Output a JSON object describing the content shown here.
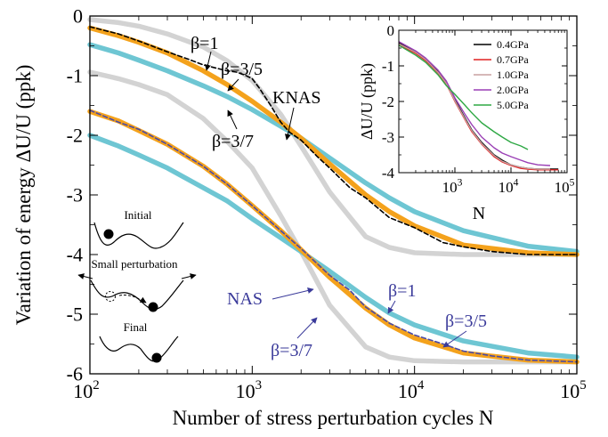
{
  "chart_data": [
    {
      "type": "line",
      "xlabel": "Number of stress perturbation cycles N",
      "ylabel": "Variation of energy ΔU/U (ppk)",
      "xscale": "log",
      "xlim": [
        100,
        100000
      ],
      "ylim": [
        -6,
        0
      ],
      "x_ticks": [
        {
          "value": 100,
          "base": "10",
          "exp": "2"
        },
        {
          "value": 1000,
          "base": "10",
          "exp": "3"
        },
        {
          "value": 10000,
          "base": "10",
          "exp": "4"
        },
        {
          "value": 100000,
          "base": "10",
          "exp": "5"
        }
      ],
      "y_ticks": [
        "0",
        "-1",
        "-2",
        "-3",
        "-4",
        "-5",
        "-6"
      ],
      "grid": false,
      "legend": "none",
      "colors": {
        "beta_1": "#d3d3d3",
        "beta_3_5": "#f4a21c",
        "beta_3_7": "#6ec6d3",
        "knas_data": "#000000",
        "nas_data": "#4a4aa8",
        "knas_label": "#000000",
        "nas_label": "#3a3a9a"
      },
      "series": [
        {
          "group": "KNAS",
          "kind": "fit_beta_1",
          "x": [
            100,
            150,
            200,
            300,
            500,
            700,
            1000,
            1500,
            2000,
            3000,
            5000,
            7000,
            10000,
            20000,
            50000,
            100000
          ],
          "y": [
            -0.06,
            -0.11,
            -0.17,
            -0.3,
            -0.52,
            -0.75,
            -1.08,
            -1.65,
            -2.18,
            -2.95,
            -3.7,
            -3.88,
            -3.97,
            -4.0,
            -4.0,
            -4.0
          ]
        },
        {
          "group": "KNAS",
          "kind": "fit_beta_3_5",
          "x": [
            100,
            150,
            200,
            300,
            500,
            700,
            1000,
            1500,
            2000,
            3000,
            5000,
            7000,
            10000,
            20000,
            50000,
            100000
          ],
          "y": [
            -0.2,
            -0.33,
            -0.44,
            -0.62,
            -0.92,
            -1.15,
            -1.43,
            -1.78,
            -2.05,
            -2.48,
            -3.0,
            -3.28,
            -3.52,
            -3.84,
            -3.97,
            -4.0
          ]
        },
        {
          "group": "KNAS",
          "kind": "fit_beta_3_7",
          "x": [
            100,
            150,
            200,
            300,
            500,
            700,
            1000,
            1500,
            2000,
            3000,
            5000,
            7000,
            10000,
            20000,
            50000,
            100000
          ],
          "y": [
            -0.48,
            -0.62,
            -0.74,
            -0.92,
            -1.17,
            -1.35,
            -1.57,
            -1.85,
            -2.05,
            -2.38,
            -2.8,
            -3.05,
            -3.28,
            -3.6,
            -3.86,
            -3.95
          ]
        },
        {
          "group": "KNAS",
          "kind": "data",
          "x": [
            100,
            150,
            200,
            300,
            400,
            500,
            700,
            800,
            900,
            1000,
            1100,
            1300,
            1500,
            1700,
            2000,
            2500,
            3000,
            4000,
            5000,
            7000,
            10000,
            15000,
            20000,
            30000,
            50000,
            100000
          ],
          "y": [
            -0.18,
            -0.3,
            -0.42,
            -0.6,
            -0.72,
            -0.82,
            -0.92,
            -0.94,
            -0.99,
            -1.05,
            -1.2,
            -1.5,
            -1.78,
            -1.95,
            -2.08,
            -2.35,
            -2.55,
            -2.88,
            -3.05,
            -3.38,
            -3.55,
            -3.8,
            -3.87,
            -3.95,
            -4.0,
            -4.0
          ]
        },
        {
          "group": "NAS",
          "kind": "fit_beta_1",
          "x": [
            100,
            150,
            200,
            300,
            500,
            700,
            1000,
            1500,
            2000,
            3000,
            5000,
            7000,
            10000,
            20000,
            50000,
            100000
          ],
          "y": [
            -0.94,
            -1.05,
            -1.15,
            -1.32,
            -1.72,
            -2.1,
            -2.55,
            -3.35,
            -3.95,
            -4.85,
            -5.55,
            -5.72,
            -5.78,
            -5.8,
            -5.8,
            -5.8
          ]
        },
        {
          "group": "NAS",
          "kind": "fit_beta_3_5",
          "x": [
            100,
            150,
            200,
            300,
            500,
            700,
            1000,
            1500,
            2000,
            3000,
            5000,
            7000,
            10000,
            20000,
            50000,
            100000
          ],
          "y": [
            -1.6,
            -1.76,
            -1.92,
            -2.15,
            -2.52,
            -2.82,
            -3.18,
            -3.6,
            -3.92,
            -4.38,
            -4.9,
            -5.18,
            -5.4,
            -5.65,
            -5.77,
            -5.8
          ]
        },
        {
          "group": "NAS",
          "kind": "fit_beta_3_7",
          "x": [
            100,
            150,
            200,
            300,
            500,
            700,
            1000,
            1500,
            2000,
            3000,
            5000,
            7000,
            10000,
            20000,
            50000,
            100000
          ],
          "y": [
            -2.0,
            -2.18,
            -2.33,
            -2.55,
            -2.88,
            -3.1,
            -3.4,
            -3.72,
            -3.95,
            -4.28,
            -4.72,
            -4.98,
            -5.18,
            -5.45,
            -5.65,
            -5.72
          ]
        },
        {
          "group": "NAS",
          "kind": "data",
          "x": [
            100,
            150,
            200,
            300,
            500,
            700,
            1000,
            1500,
            2000,
            3000,
            4000,
            5000,
            7000,
            10000,
            15000,
            20000,
            30000,
            50000,
            100000
          ],
          "y": [
            -1.58,
            -1.78,
            -1.9,
            -2.15,
            -2.52,
            -2.82,
            -3.18,
            -3.6,
            -3.9,
            -4.35,
            -4.6,
            -4.88,
            -5.15,
            -5.35,
            -5.5,
            -5.62,
            -5.7,
            -5.77,
            -5.8
          ]
        }
      ],
      "annotations": {
        "knas": "KNAS",
        "nas": "NAS",
        "knas_beta_1": "β=1",
        "knas_beta_3_5": "β=3/5",
        "knas_beta_3_7": "β=3/7",
        "nas_beta_1": "β=1",
        "nas_beta_3_5": "β=3/5",
        "nas_beta_3_7": "β=3/7"
      }
    },
    {
      "type": "line",
      "role": "inset",
      "xlabel": "N",
      "ylabel": "ΔU/U (ppk)",
      "xscale": "log",
      "xlim": [
        100,
        100000
      ],
      "ylim": [
        -4,
        0
      ],
      "x_ticks": [
        {
          "value": 1000,
          "base": "10",
          "exp": "3"
        },
        {
          "value": 10000,
          "base": "10",
          "exp": "4"
        },
        {
          "value": 100000,
          "base": "10",
          "exp": "5"
        }
      ],
      "y_ticks": [
        "0",
        "-1",
        "-2",
        "-3",
        "-4"
      ],
      "legend": "top-right",
      "series": [
        {
          "name": "0.4GPa",
          "color": "#000000",
          "x": [
            100,
            200,
            300,
            500,
            700,
            1000,
            1500,
            2000,
            3000,
            5000,
            7000,
            10000,
            15000,
            20000,
            30000,
            50000,
            70000
          ],
          "y": [
            -0.35,
            -0.6,
            -0.8,
            -1.15,
            -1.45,
            -1.95,
            -2.45,
            -2.8,
            -3.15,
            -3.5,
            -3.65,
            -3.78,
            -3.85,
            -3.88,
            -3.9,
            -3.9,
            -3.9
          ]
        },
        {
          "name": "0.7GPa",
          "color": "#e02020",
          "x": [
            100,
            200,
            300,
            500,
            700,
            1000,
            1500,
            2000,
            3000,
            5000,
            7000,
            10000,
            15000,
            20000,
            30000,
            50000,
            70000
          ],
          "y": [
            -0.4,
            -0.65,
            -0.85,
            -1.2,
            -1.5,
            -2.0,
            -2.5,
            -2.85,
            -3.2,
            -3.55,
            -3.7,
            -3.8,
            -3.88,
            -3.9,
            -3.92,
            -3.92,
            -3.92
          ]
        },
        {
          "name": "1.0GPa",
          "color": "#c8a0a0",
          "x": [
            100,
            200,
            300,
            500,
            700,
            1000,
            1500,
            2000,
            3000,
            5000,
            7000,
            10000,
            15000,
            20000,
            30000,
            50000
          ],
          "y": [
            -0.38,
            -0.62,
            -0.82,
            -1.18,
            -1.48,
            -1.98,
            -2.48,
            -2.82,
            -3.18,
            -3.52,
            -3.68,
            -3.78,
            -3.85,
            -3.88,
            -3.9,
            -3.9
          ]
        },
        {
          "name": "2.0GPa",
          "color": "#9a3fb5",
          "x": [
            100,
            200,
            300,
            500,
            700,
            1000,
            1500,
            2000,
            3000,
            5000,
            7000,
            10000,
            15000,
            20000,
            30000,
            50000
          ],
          "y": [
            -0.32,
            -0.58,
            -0.78,
            -1.12,
            -1.42,
            -1.9,
            -2.35,
            -2.65,
            -3.0,
            -3.3,
            -3.45,
            -3.55,
            -3.65,
            -3.72,
            -3.78,
            -3.8
          ]
        },
        {
          "name": "5.0GPa",
          "color": "#2ea844",
          "x": [
            100,
            200,
            300,
            500,
            700,
            1000,
            1500,
            2000,
            3000,
            5000,
            7000,
            10000,
            15000,
            20000
          ],
          "y": [
            -0.42,
            -0.7,
            -0.9,
            -1.25,
            -1.55,
            -1.8,
            -2.1,
            -2.32,
            -2.6,
            -2.85,
            -3.0,
            -3.15,
            -3.25,
            -3.35
          ]
        }
      ]
    }
  ],
  "schematic": {
    "labels": {
      "initial": "Initial",
      "small_perturbation": "Small perturbation",
      "final": "Final"
    }
  }
}
